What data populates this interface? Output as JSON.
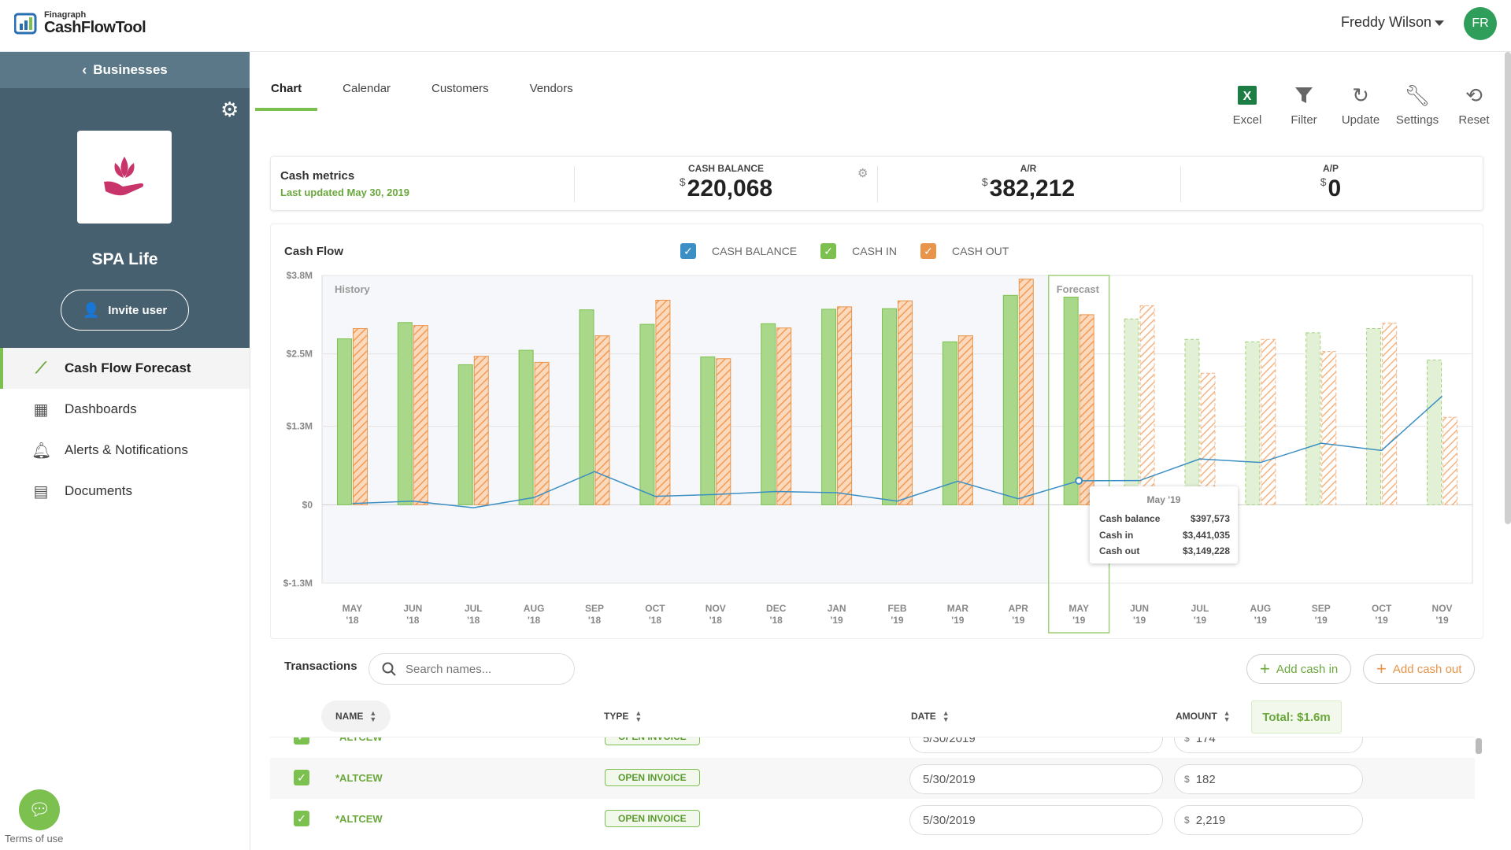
{
  "app": {
    "logo_small": "Finagraph",
    "logo_big": "CashFlowTool",
    "user_name": "Freddy Wilson",
    "user_initials": "FR"
  },
  "sidebar": {
    "back_label": "Businesses",
    "business_name": "SPA Life",
    "invite_label": "Invite user",
    "nav": [
      {
        "label": "Cash Flow Forecast",
        "icon": "trend-icon",
        "active": true
      },
      {
        "label": "Dashboards",
        "icon": "dashboard-icon"
      },
      {
        "label": "Alerts & Notifications",
        "icon": "bell-icon"
      },
      {
        "label": "Documents",
        "icon": "document-icon"
      }
    ],
    "terms_label": "Terms of use"
  },
  "tabs": [
    {
      "label": "Chart",
      "active": true
    },
    {
      "label": "Calendar"
    },
    {
      "label": "Customers"
    },
    {
      "label": "Vendors"
    }
  ],
  "toolbar": [
    {
      "label": "Excel",
      "icon": "excel-icon"
    },
    {
      "label": "Filter",
      "icon": "filter-icon"
    },
    {
      "label": "Update",
      "icon": "refresh-icon"
    },
    {
      "label": "Settings",
      "icon": "wrench-icon"
    },
    {
      "label": "Reset",
      "icon": "history-icon"
    }
  ],
  "metrics": {
    "title": "Cash metrics",
    "updated": "Last updated May 30, 2019",
    "currency": "$",
    "items": [
      {
        "label": "CASH BALANCE",
        "value": "220,068"
      },
      {
        "label": "A/R",
        "value": "382,212"
      },
      {
        "label": "A/P",
        "value": "0"
      }
    ]
  },
  "chart": {
    "title": "Cash Flow",
    "legend": [
      {
        "label": "CASH BALANCE",
        "color": "#3b8fc4"
      },
      {
        "label": "CASH IN",
        "color": "#7cc04f"
      },
      {
        "label": "CASH OUT",
        "color": "#e8944a"
      }
    ],
    "history_label": "History",
    "forecast_label": "Forecast",
    "tooltip": {
      "title": "May '19",
      "rows": [
        {
          "label": "Cash balance",
          "value": "$397,573"
        },
        {
          "label": "Cash in",
          "value": "$3,441,035"
        },
        {
          "label": "Cash out",
          "value": "$3,149,228"
        }
      ]
    }
  },
  "chart_data": {
    "type": "bar",
    "title": "Cash Flow",
    "y_tick_labels": [
      "$3.8M",
      "$2.5M",
      "$1.3M",
      "$0",
      "$-1.3M"
    ],
    "y_ticks": [
      3800000,
      2500000,
      1300000,
      0,
      -1300000
    ],
    "ylim": [
      -1300000,
      3800000
    ],
    "categories": [
      "MAY '18",
      "JUN '18",
      "JUL '18",
      "AUG '18",
      "SEP '18",
      "OCT '18",
      "NOV '18",
      "DEC '18",
      "JAN '19",
      "FEB '19",
      "MAR '19",
      "APR '19",
      "MAY '19",
      "JUN '19",
      "JUL '19",
      "AUG '19",
      "SEP '19",
      "OCT '19",
      "NOV '19"
    ],
    "forecast_start_index": 12,
    "series": [
      {
        "name": "CASH IN",
        "values": [
          2750000,
          3020000,
          2320000,
          2560000,
          3230000,
          2990000,
          2450000,
          3000000,
          3240000,
          3250000,
          2700000,
          3470000,
          3441035,
          3080000,
          2740000,
          2700000,
          2850000,
          2920000,
          2400000
        ]
      },
      {
        "name": "CASH OUT",
        "values": [
          2920000,
          2970000,
          2460000,
          2360000,
          2800000,
          3390000,
          2420000,
          2930000,
          3280000,
          3380000,
          2800000,
          3740000,
          3149228,
          3300000,
          2180000,
          2740000,
          2540000,
          3010000,
          1450000
        ]
      },
      {
        "name": "CASH BALANCE",
        "values": [
          20000,
          60000,
          -50000,
          120000,
          550000,
          140000,
          170000,
          220000,
          200000,
          60000,
          390000,
          100000,
          397573,
          400000,
          760000,
          700000,
          1020000,
          900000,
          1800000
        ]
      }
    ],
    "legend_position": "top-center"
  },
  "transactions": {
    "title": "Transactions",
    "search_placeholder": "Search names...",
    "add_in": "Add cash in",
    "add_out": "Add cash out",
    "columns": [
      "NAME",
      "TYPE",
      "DATE",
      "AMOUNT"
    ],
    "total": "Total: $1.6m",
    "rows": [
      {
        "name": "*ALTCEW",
        "type": "OPEN INVOICE",
        "date": "5/30/2019",
        "amount": "174"
      },
      {
        "name": "*ALTCEW",
        "type": "OPEN INVOICE",
        "date": "5/30/2019",
        "amount": "182"
      },
      {
        "name": "*ALTCEW",
        "type": "OPEN INVOICE",
        "date": "5/30/2019",
        "amount": "2,219"
      }
    ]
  }
}
